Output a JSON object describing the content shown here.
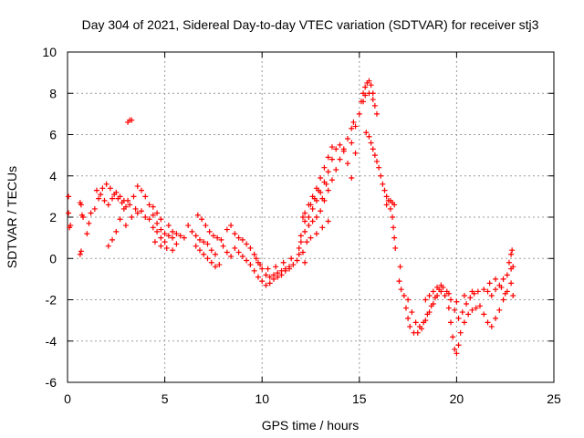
{
  "chart_data": {
    "type": "scatter",
    "title": "Day 304 of 2021, Sidereal Day-to-day VTEC variation (SDTVAR) for receiver stj3",
    "xlabel": "GPS time / hours",
    "ylabel": "SDTVAR / TECUs",
    "xlim": [
      0,
      25
    ],
    "ylim": [
      -6,
      10
    ],
    "x_ticks": [
      0,
      5,
      10,
      15,
      20,
      25
    ],
    "y_ticks": [
      -6,
      -4,
      -2,
      0,
      2,
      4,
      6,
      8,
      10
    ],
    "grid": true,
    "marker": "+",
    "series_color": "#ff0000",
    "series": [
      {
        "name": "SDTVAR",
        "points": [
          [
            0.05,
            3.0
          ],
          [
            0.05,
            2.2
          ],
          [
            0.1,
            1.5
          ],
          [
            0.15,
            1.6
          ],
          [
            0.65,
            0.2
          ],
          [
            0.7,
            0.35
          ],
          [
            0.65,
            2.7
          ],
          [
            0.7,
            2.6
          ],
          [
            0.75,
            2.1
          ],
          [
            0.8,
            2.0
          ],
          [
            1.0,
            1.2
          ],
          [
            1.1,
            1.7
          ],
          [
            1.2,
            2.2
          ],
          [
            1.4,
            2.4
          ],
          [
            1.6,
            2.9
          ],
          [
            1.8,
            3.4
          ],
          [
            2.0,
            3.6
          ],
          [
            2.2,
            3.4
          ],
          [
            2.4,
            3.1
          ],
          [
            2.6,
            2.9
          ],
          [
            2.8,
            2.7
          ],
          [
            3.0,
            2.5
          ],
          [
            3.2,
            2.6
          ],
          [
            3.4,
            3.0
          ],
          [
            1.5,
            3.3
          ],
          [
            1.7,
            3.1
          ],
          [
            1.9,
            2.8
          ],
          [
            2.1,
            2.6
          ],
          [
            2.3,
            2.9
          ],
          [
            2.5,
            3.2
          ],
          [
            2.7,
            3.0
          ],
          [
            2.9,
            2.8
          ],
          [
            2.1,
            0.6
          ],
          [
            2.3,
            0.9
          ],
          [
            2.5,
            1.3
          ],
          [
            2.7,
            1.9
          ],
          [
            2.9,
            2.4
          ],
          [
            3.1,
            2.8
          ],
          [
            3.0,
            1.6
          ],
          [
            3.3,
            2.0
          ],
          [
            3.5,
            2.4
          ],
          [
            3.1,
            6.6
          ],
          [
            3.2,
            6.7
          ],
          [
            3.3,
            6.7
          ],
          [
            3.6,
            3.5
          ],
          [
            3.8,
            3.3
          ],
          [
            4.0,
            3.0
          ],
          [
            4.2,
            2.6
          ],
          [
            4.4,
            2.1
          ],
          [
            4.6,
            1.7
          ],
          [
            4.8,
            1.4
          ],
          [
            5.0,
            1.2
          ],
          [
            5.2,
            1.1
          ],
          [
            5.4,
            1.0
          ],
          [
            3.6,
            2.2
          ],
          [
            3.8,
            2.3
          ],
          [
            4.0,
            2.0
          ],
          [
            4.2,
            1.9
          ],
          [
            4.4,
            1.5
          ],
          [
            4.6,
            1.3
          ],
          [
            4.8,
            1.0
          ],
          [
            5.0,
            0.8
          ],
          [
            4.4,
            2.5
          ],
          [
            4.6,
            2.2
          ],
          [
            4.8,
            1.9
          ],
          [
            5.2,
            1.6
          ],
          [
            5.4,
            1.3
          ],
          [
            5.6,
            1.2
          ],
          [
            5.8,
            1.1
          ],
          [
            6.0,
            1.0
          ],
          [
            4.5,
            0.8
          ],
          [
            4.8,
            0.6
          ],
          [
            5.1,
            0.5
          ],
          [
            5.4,
            0.4
          ],
          [
            5.6,
            0.7
          ],
          [
            6.2,
            1.6
          ],
          [
            6.4,
            1.3
          ],
          [
            6.6,
            1.1
          ],
          [
            6.8,
            0.9
          ],
          [
            7.0,
            0.8
          ],
          [
            7.2,
            0.7
          ],
          [
            7.4,
            0.4
          ],
          [
            7.6,
            0.2
          ],
          [
            6.6,
            0.6
          ],
          [
            6.8,
            0.4
          ],
          [
            7.0,
            0.2
          ],
          [
            7.2,
            0.0
          ],
          [
            7.4,
            -0.2
          ],
          [
            7.6,
            -0.4
          ],
          [
            7.8,
            -0.3
          ],
          [
            6.7,
            2.1
          ],
          [
            6.9,
            1.9
          ],
          [
            7.1,
            1.6
          ],
          [
            7.3,
            1.3
          ],
          [
            7.5,
            1.1
          ],
          [
            7.7,
            1.0
          ],
          [
            7.9,
            0.9
          ],
          [
            8.0,
            0.6
          ],
          [
            8.2,
            0.3
          ],
          [
            8.4,
            0.1
          ],
          [
            8.2,
            1.4
          ],
          [
            8.4,
            1.6
          ],
          [
            8.6,
            1.2
          ],
          [
            8.8,
            1.0
          ],
          [
            9.0,
            0.9
          ],
          [
            9.2,
            0.7
          ],
          [
            9.4,
            0.5
          ],
          [
            9.6,
            0.2
          ],
          [
            9.8,
            -0.2
          ],
          [
            10.0,
            -0.5
          ],
          [
            10.2,
            -0.8
          ],
          [
            10.4,
            -0.9
          ],
          [
            10.6,
            -0.8
          ],
          [
            10.8,
            -0.7
          ],
          [
            11.0,
            -0.6
          ],
          [
            11.2,
            -0.5
          ],
          [
            11.4,
            -0.4
          ],
          [
            11.6,
            -0.3
          ],
          [
            11.8,
            -0.1
          ],
          [
            8.6,
            0.5
          ],
          [
            8.8,
            0.3
          ],
          [
            9.0,
            0.1
          ],
          [
            9.2,
            -0.1
          ],
          [
            9.4,
            -0.3
          ],
          [
            9.6,
            -0.6
          ],
          [
            9.8,
            -0.9
          ],
          [
            10.0,
            -1.1
          ],
          [
            10.2,
            -1.3
          ],
          [
            10.4,
            -1.2
          ],
          [
            10.6,
            -1.0
          ],
          [
            10.8,
            -0.9
          ],
          [
            11.0,
            -0.8
          ],
          [
            11.2,
            -0.6
          ],
          [
            11.4,
            -0.5
          ],
          [
            9.7,
            0.0
          ],
          [
            9.9,
            -0.3
          ],
          [
            10.3,
            -0.5
          ],
          [
            10.7,
            -0.4
          ],
          [
            11.1,
            -0.2
          ],
          [
            11.5,
            0.0
          ],
          [
            11.9,
            0.2
          ],
          [
            11.9,
            0.5
          ],
          [
            12.0,
            0.8
          ],
          [
            12.1,
            0.3
          ],
          [
            12.2,
            -0.2
          ],
          [
            12.0,
            1.1
          ],
          [
            12.2,
            1.3
          ],
          [
            12.4,
            1.6
          ],
          [
            12.6,
            1.8
          ],
          [
            12.8,
            2.0
          ],
          [
            13.0,
            2.3
          ],
          [
            13.2,
            2.8
          ],
          [
            13.4,
            3.3
          ],
          [
            13.6,
            3.8
          ],
          [
            13.8,
            4.3
          ],
          [
            14.0,
            4.8
          ],
          [
            14.2,
            5.3
          ],
          [
            14.4,
            5.8
          ],
          [
            14.6,
            6.3
          ],
          [
            14.7,
            6.6
          ],
          [
            12.2,
            1.8
          ],
          [
            12.4,
            2.0
          ],
          [
            12.6,
            2.4
          ],
          [
            12.8,
            2.8
          ],
          [
            13.0,
            3.2
          ],
          [
            13.2,
            3.7
          ],
          [
            13.4,
            4.2
          ],
          [
            13.6,
            4.8
          ],
          [
            13.8,
            5.3
          ],
          [
            14.0,
            5.5
          ],
          [
            14.2,
            5.2
          ],
          [
            12.1,
            2.0
          ],
          [
            12.2,
            2.2
          ],
          [
            12.4,
            2.6
          ],
          [
            12.6,
            3.0
          ],
          [
            12.8,
            3.4
          ],
          [
            13.0,
            3.9
          ],
          [
            13.2,
            4.4
          ],
          [
            13.4,
            4.9
          ],
          [
            13.6,
            5.4
          ],
          [
            12.3,
            0.8
          ],
          [
            12.5,
            1.0
          ],
          [
            12.8,
            1.2
          ],
          [
            13.1,
            1.5
          ],
          [
            13.4,
            1.8
          ],
          [
            12.5,
            2.6
          ],
          [
            12.7,
            2.9
          ],
          [
            12.9,
            3.3
          ],
          [
            13.1,
            2.9
          ],
          [
            13.3,
            3.6
          ],
          [
            14.4,
            4.6
          ],
          [
            14.6,
            5.6
          ],
          [
            14.8,
            6.4
          ],
          [
            14.6,
            3.9
          ],
          [
            14.8,
            5.1
          ],
          [
            15.0,
            7.0
          ],
          [
            15.1,
            7.6
          ],
          [
            15.2,
            8.0
          ],
          [
            15.3,
            8.3
          ],
          [
            15.4,
            8.5
          ],
          [
            15.5,
            8.6
          ],
          [
            15.6,
            8.4
          ],
          [
            15.7,
            8.0
          ],
          [
            15.8,
            7.4
          ],
          [
            15.9,
            7.0
          ],
          [
            15.2,
            7.6
          ],
          [
            15.3,
            7.9
          ],
          [
            15.5,
            8.0
          ],
          [
            15.7,
            7.7
          ],
          [
            15.35,
            6.1
          ],
          [
            15.5,
            5.9
          ],
          [
            15.6,
            5.6
          ],
          [
            15.7,
            5.3
          ],
          [
            15.8,
            5.0
          ],
          [
            15.9,
            4.7
          ],
          [
            16.0,
            4.4
          ],
          [
            16.1,
            4.0
          ],
          [
            16.2,
            3.6
          ],
          [
            16.3,
            3.3
          ],
          [
            16.4,
            3.0
          ],
          [
            16.5,
            2.8
          ],
          [
            16.6,
            2.4
          ],
          [
            16.7,
            2.0
          ],
          [
            16.75,
            1.5
          ],
          [
            16.8,
            1.0
          ],
          [
            16.85,
            0.5
          ],
          [
            16.4,
            2.6
          ],
          [
            16.6,
            2.8
          ],
          [
            16.7,
            2.7
          ],
          [
            16.8,
            2.6
          ],
          [
            17.1,
            -0.4
          ],
          [
            17.05,
            -1.1
          ],
          [
            17.15,
            -1.5
          ],
          [
            17.3,
            -1.8
          ],
          [
            17.4,
            -2.4
          ],
          [
            17.5,
            -2.9
          ],
          [
            17.6,
            -3.3
          ],
          [
            17.8,
            -3.6
          ],
          [
            18.0,
            -3.6
          ],
          [
            18.2,
            -3.4
          ],
          [
            18.4,
            -3.0
          ],
          [
            18.6,
            -2.6
          ],
          [
            18.8,
            -2.2
          ],
          [
            19.0,
            -1.8
          ],
          [
            19.2,
            -1.6
          ],
          [
            19.4,
            -1.8
          ],
          [
            19.6,
            -2.4
          ],
          [
            19.7,
            -3.1
          ],
          [
            19.8,
            -3.8
          ],
          [
            19.9,
            -4.4
          ],
          [
            20.0,
            -4.6
          ],
          [
            20.1,
            -4.2
          ],
          [
            20.2,
            -3.6
          ],
          [
            20.4,
            -3.1
          ],
          [
            20.6,
            -2.7
          ],
          [
            20.8,
            -2.5
          ],
          [
            21.0,
            -2.4
          ],
          [
            17.5,
            -2.0
          ],
          [
            17.7,
            -2.6
          ],
          [
            17.9,
            -3.1
          ],
          [
            18.1,
            -3.3
          ],
          [
            18.3,
            -3.1
          ],
          [
            18.5,
            -2.7
          ],
          [
            18.7,
            -2.3
          ],
          [
            18.9,
            -1.9
          ],
          [
            19.1,
            -1.5
          ],
          [
            19.3,
            -1.4
          ],
          [
            19.5,
            -1.6
          ],
          [
            19.7,
            -2.0
          ],
          [
            19.9,
            -2.5
          ],
          [
            20.1,
            -2.9
          ],
          [
            20.3,
            -2.6
          ],
          [
            20.5,
            -2.2
          ],
          [
            20.7,
            -1.9
          ],
          [
            20.9,
            -1.7
          ],
          [
            21.1,
            -1.6
          ],
          [
            18.4,
            -2.0
          ],
          [
            18.6,
            -1.8
          ],
          [
            18.8,
            -1.6
          ],
          [
            19.0,
            -1.4
          ],
          [
            19.2,
            -1.3
          ],
          [
            19.6,
            -1.7
          ],
          [
            20.0,
            -2.1
          ],
          [
            20.4,
            -1.8
          ],
          [
            20.8,
            -1.6
          ],
          [
            21.2,
            -2.3
          ],
          [
            21.4,
            -2.7
          ],
          [
            21.6,
            -3.1
          ],
          [
            21.8,
            -3.3
          ],
          [
            22.0,
            -2.9
          ],
          [
            22.2,
            -2.5
          ],
          [
            22.4,
            -2.0
          ],
          [
            22.6,
            -1.6
          ],
          [
            22.8,
            -1.2
          ],
          [
            21.6,
            -1.6
          ],
          [
            21.8,
            -1.8
          ],
          [
            22.0,
            -1.5
          ],
          [
            22.2,
            -1.3
          ],
          [
            22.4,
            -1.0
          ],
          [
            22.6,
            -0.8
          ],
          [
            22.8,
            -0.5
          ],
          [
            21.4,
            -1.5
          ],
          [
            21.7,
            -1.2
          ],
          [
            22.0,
            -1.0
          ],
          [
            22.3,
            -1.4
          ],
          [
            22.5,
            -1.7
          ],
          [
            22.7,
            -0.2
          ],
          [
            22.8,
            0.2
          ],
          [
            22.85,
            0.4
          ],
          [
            22.9,
            -0.4
          ],
          [
            22.9,
            -1.8
          ]
        ]
      }
    ]
  }
}
